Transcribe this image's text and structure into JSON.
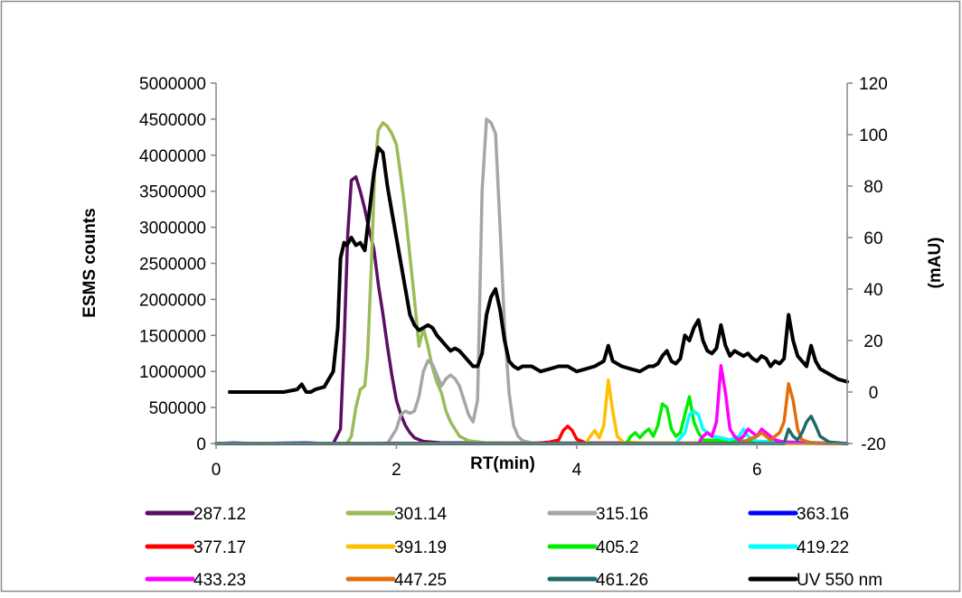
{
  "chart_data": {
    "type": "line",
    "title": "",
    "xlabel": "RT(min)",
    "ylabel": "ESMS counts",
    "y2label": "(mAU)",
    "xlim": [
      0,
      7
    ],
    "ylim": [
      0,
      5000000
    ],
    "y2lim": [
      -20,
      120
    ],
    "x_ticks": [
      "0",
      "2",
      "4",
      "6"
    ],
    "y_ticks": [
      "0",
      "500000",
      "1000000",
      "1500000",
      "2000000",
      "2500000",
      "3000000",
      "3500000",
      "4000000",
      "4500000",
      "5000000"
    ],
    "y2_ticks": [
      "-20",
      "0",
      "20",
      "40",
      "60",
      "80",
      "100",
      "120"
    ],
    "grid": false,
    "legend_position": "bottom",
    "series": [
      {
        "name": "287.12",
        "color": "#5b0f63",
        "axis": "left",
        "x": [
          0,
          1.3,
          1.38,
          1.42,
          1.46,
          1.5,
          1.55,
          1.6,
          1.65,
          1.7,
          1.75,
          1.8,
          1.85,
          1.9,
          1.95,
          2.0,
          2.05,
          2.1,
          2.15,
          2.2,
          2.3,
          2.5,
          7
        ],
        "y": [
          0,
          0,
          200000,
          1400000,
          2900000,
          3650000,
          3700000,
          3500000,
          3250000,
          2950000,
          2700000,
          2200000,
          1800000,
          1350000,
          950000,
          600000,
          400000,
          250000,
          150000,
          80000,
          30000,
          10000,
          0
        ]
      },
      {
        "name": "301.14",
        "color": "#9bbb59",
        "axis": "left",
        "x": [
          0,
          1.45,
          1.5,
          1.55,
          1.6,
          1.65,
          1.68,
          1.72,
          1.76,
          1.8,
          1.85,
          1.9,
          1.95,
          2.0,
          2.05,
          2.1,
          2.15,
          2.2,
          2.25,
          2.3,
          2.35,
          2.4,
          2.45,
          2.5,
          2.55,
          2.6,
          2.65,
          2.7,
          2.8,
          3.0,
          7
        ],
        "y": [
          0,
          0,
          100000,
          500000,
          750000,
          800000,
          1200000,
          2400000,
          3800000,
          4350000,
          4450000,
          4400000,
          4300000,
          4150000,
          3700000,
          3200000,
          2600000,
          2000000,
          1350000,
          1600000,
          1350000,
          1050000,
          850000,
          700000,
          450000,
          300000,
          200000,
          100000,
          40000,
          10000,
          0
        ]
      },
      {
        "name": "315.16",
        "color": "#a6a6a6",
        "axis": "left",
        "x": [
          0,
          1.9,
          2.0,
          2.05,
          2.1,
          2.15,
          2.2,
          2.25,
          2.3,
          2.35,
          2.4,
          2.45,
          2.5,
          2.55,
          2.6,
          2.65,
          2.7,
          2.75,
          2.8,
          2.85,
          2.9,
          2.95,
          3.0,
          3.05,
          3.1,
          3.15,
          3.2,
          3.25,
          3.3,
          3.35,
          3.4,
          3.5,
          7
        ],
        "y": [
          0,
          0,
          200000,
          400000,
          450000,
          420000,
          450000,
          650000,
          1000000,
          1150000,
          1100000,
          950000,
          800000,
          900000,
          950000,
          900000,
          800000,
          600000,
          400000,
          300000,
          600000,
          3500000,
          4500000,
          4450000,
          4300000,
          3000000,
          1600000,
          700000,
          250000,
          100000,
          40000,
          10000,
          0
        ]
      },
      {
        "name": "363.16",
        "color": "#0000ff",
        "axis": "left",
        "x": [
          0,
          0.2,
          0.4,
          1.0,
          1.2,
          2.0,
          3.0,
          4.0,
          5.0,
          6.0,
          7
        ],
        "y": [
          0,
          8000,
          0,
          10000,
          0,
          5000,
          0,
          5000,
          0,
          5000,
          0
        ]
      },
      {
        "name": "377.17",
        "color": "#ff0000",
        "axis": "left",
        "x": [
          0,
          3.5,
          3.6,
          3.7,
          3.8,
          3.85,
          3.9,
          3.95,
          4.0,
          4.1,
          7
        ],
        "y": [
          0,
          0,
          10000,
          20000,
          50000,
          180000,
          240000,
          180000,
          60000,
          10000,
          0
        ]
      },
      {
        "name": "391.19",
        "color": "#ffc000",
        "axis": "left",
        "x": [
          0,
          4.1,
          4.15,
          4.2,
          4.25,
          4.3,
          4.35,
          4.4,
          4.45,
          4.5,
          4.55,
          4.6,
          4.7,
          7
        ],
        "y": [
          0,
          0,
          100000,
          180000,
          80000,
          250000,
          880000,
          450000,
          100000,
          40000,
          0,
          20000,
          10000,
          0
        ]
      },
      {
        "name": "405.2",
        "color": "#00ee00",
        "axis": "left",
        "x": [
          0,
          4.55,
          4.6,
          4.65,
          4.7,
          4.75,
          4.8,
          4.85,
          4.9,
          4.95,
          5.0,
          5.05,
          5.1,
          5.15,
          5.2,
          5.25,
          5.3,
          5.35,
          5.4,
          7
        ],
        "y": [
          0,
          0,
          100000,
          150000,
          80000,
          150000,
          200000,
          100000,
          250000,
          550000,
          500000,
          200000,
          100000,
          150000,
          400000,
          650000,
          300000,
          150000,
          50000,
          0
        ]
      },
      {
        "name": "419.22",
        "color": "#00ffff",
        "axis": "left",
        "x": [
          0,
          5.1,
          5.2,
          5.25,
          5.3,
          5.35,
          5.4,
          5.5,
          5.6,
          5.7,
          5.8,
          5.85,
          5.9,
          6.0,
          7
        ],
        "y": [
          0,
          0,
          150000,
          400000,
          450000,
          400000,
          200000,
          100000,
          80000,
          50000,
          100000,
          200000,
          100000,
          30000,
          0
        ]
      },
      {
        "name": "433.23",
        "color": "#ff00ff",
        "axis": "left",
        "x": [
          0,
          5.35,
          5.4,
          5.45,
          5.5,
          5.55,
          5.6,
          5.65,
          5.7,
          5.75,
          5.8,
          5.85,
          5.9,
          5.95,
          6.0,
          6.05,
          6.1,
          6.15,
          6.2,
          6.3,
          7
        ],
        "y": [
          0,
          0,
          100000,
          150000,
          100000,
          300000,
          1080000,
          700000,
          200000,
          100000,
          50000,
          100000,
          200000,
          150000,
          100000,
          200000,
          150000,
          100000,
          50000,
          20000,
          0
        ]
      },
      {
        "name": "447.25",
        "color": "#e46c0a",
        "axis": "left",
        "x": [
          0,
          5.8,
          5.9,
          6.0,
          6.05,
          6.1,
          6.15,
          6.2,
          6.25,
          6.3,
          6.35,
          6.4,
          6.45,
          6.5,
          6.6,
          7
        ],
        "y": [
          0,
          0,
          50000,
          100000,
          150000,
          100000,
          50000,
          100000,
          150000,
          300000,
          830000,
          600000,
          200000,
          50000,
          10000,
          0
        ]
      },
      {
        "name": "461.26",
        "color": "#1f6b6b",
        "axis": "left",
        "x": [
          0,
          6.3,
          6.35,
          6.4,
          6.45,
          6.5,
          6.55,
          6.6,
          6.65,
          6.7,
          6.8,
          7
        ],
        "y": [
          0,
          0,
          200000,
          100000,
          50000,
          150000,
          300000,
          380000,
          250000,
          100000,
          20000,
          0
        ]
      },
      {
        "name": "UV 550 nm",
        "color": "#000000",
        "axis": "right",
        "x": [
          0.15,
          0.3,
          0.45,
          0.6,
          0.75,
          0.9,
          0.95,
          1.0,
          1.05,
          1.1,
          1.2,
          1.25,
          1.3,
          1.35,
          1.38,
          1.42,
          1.45,
          1.5,
          1.55,
          1.6,
          1.65,
          1.7,
          1.75,
          1.8,
          1.85,
          1.9,
          1.95,
          2.0,
          2.05,
          2.1,
          2.15,
          2.2,
          2.25,
          2.3,
          2.35,
          2.4,
          2.45,
          2.5,
          2.55,
          2.6,
          2.65,
          2.7,
          2.75,
          2.8,
          2.85,
          2.9,
          2.95,
          3.0,
          3.05,
          3.1,
          3.15,
          3.2,
          3.25,
          3.3,
          3.35,
          3.4,
          3.5,
          3.6,
          3.7,
          3.8,
          3.9,
          4.0,
          4.1,
          4.2,
          4.3,
          4.35,
          4.4,
          4.45,
          4.5,
          4.6,
          4.7,
          4.8,
          4.85,
          4.9,
          4.95,
          5.0,
          5.05,
          5.1,
          5.15,
          5.2,
          5.25,
          5.3,
          5.35,
          5.4,
          5.45,
          5.5,
          5.55,
          5.6,
          5.65,
          5.7,
          5.75,
          5.8,
          5.85,
          5.9,
          5.95,
          6.0,
          6.05,
          6.1,
          6.15,
          6.2,
          6.25,
          6.3,
          6.35,
          6.4,
          6.45,
          6.5,
          6.55,
          6.6,
          6.65,
          6.7,
          6.75,
          6.8,
          6.85,
          6.9,
          7.0
        ],
        "y": [
          0,
          0,
          0,
          0,
          0,
          1,
          3,
          0,
          0,
          1,
          2,
          5,
          8,
          25,
          52,
          58,
          57,
          60,
          57,
          58,
          55,
          70,
          85,
          95,
          93,
          80,
          70,
          60,
          50,
          40,
          30,
          26,
          24,
          25,
          26,
          25,
          22,
          20,
          18,
          16,
          17,
          16,
          14,
          12,
          10,
          10,
          15,
          30,
          37,
          40,
          32,
          20,
          12,
          10,
          9,
          10,
          10,
          8,
          9,
          10,
          10,
          8,
          9,
          10,
          12,
          18,
          12,
          11,
          10,
          9,
          8,
          10,
          10,
          11,
          14,
          16,
          12,
          11,
          13,
          22,
          20,
          25,
          28,
          20,
          16,
          15,
          17,
          26,
          18,
          14,
          16,
          15,
          14,
          15,
          13,
          12,
          14,
          13,
          10,
          12,
          11,
          13,
          30,
          20,
          14,
          12,
          10,
          18,
          12,
          9,
          8,
          7,
          6,
          5,
          4
        ]
      }
    ]
  }
}
